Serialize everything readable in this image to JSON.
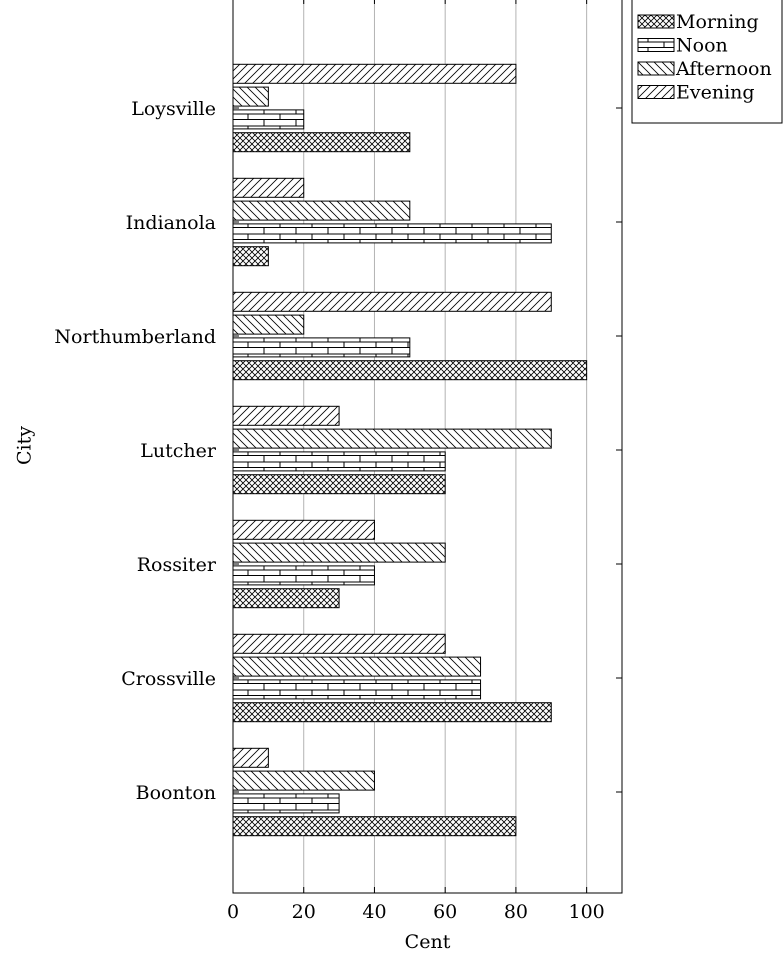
{
  "chart_data": {
    "type": "bar",
    "orientation": "horizontal",
    "title": "",
    "xlabel": "Cent",
    "ylabel": "City",
    "xlim": [
      0,
      110
    ],
    "x_ticks": [
      0,
      20,
      40,
      60,
      80,
      100
    ],
    "grid": "vertical",
    "legend_position": "top-right, outside plot",
    "categories": [
      "Boonton",
      "Crossville",
      "Rossiter",
      "Lutcher",
      "Northumberland",
      "Indianola",
      "Loysville"
    ],
    "series": [
      {
        "name": "Morning",
        "pattern": "crosshatch",
        "values": [
          80,
          90,
          30,
          60,
          100,
          10,
          50
        ]
      },
      {
        "name": "Noon",
        "pattern": "bricks",
        "values": [
          30,
          70,
          40,
          60,
          50,
          90,
          20
        ]
      },
      {
        "name": "Afternoon",
        "pattern": "north-west lines",
        "values": [
          40,
          70,
          60,
          90,
          20,
          50,
          10
        ]
      },
      {
        "name": "Evening",
        "pattern": "north-east lines",
        "values": [
          10,
          60,
          40,
          30,
          90,
          20,
          80
        ]
      }
    ]
  }
}
